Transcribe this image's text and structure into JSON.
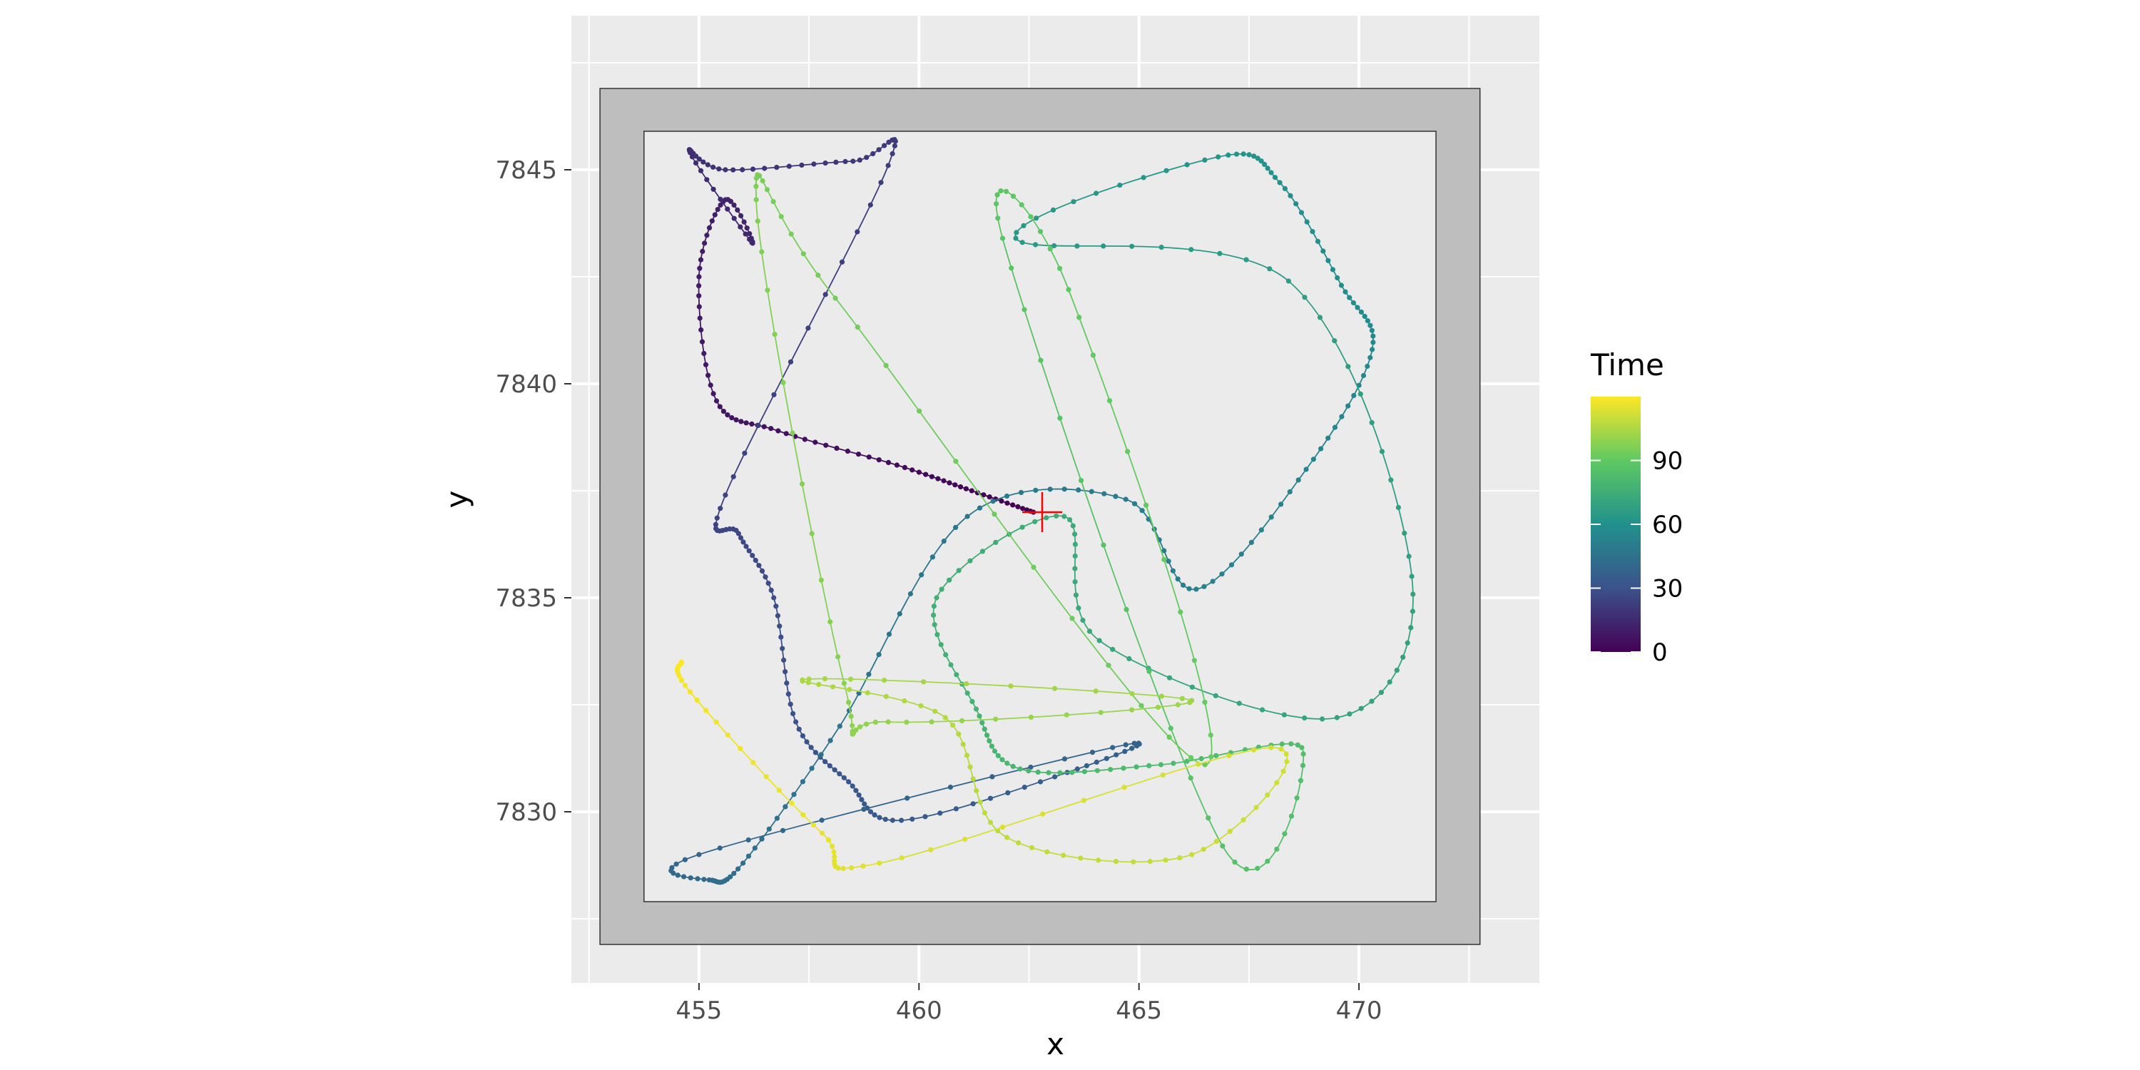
{
  "chart_data": {
    "type": "line",
    "title": "",
    "xlabel": "x",
    "ylabel": "y",
    "xlim": [
      452.1,
      474.1
    ],
    "ylim": [
      7826.0,
      7848.6
    ],
    "x_ticks": [
      455,
      460,
      465,
      470
    ],
    "y_ticks": [
      7830,
      7835,
      7840,
      7845
    ],
    "grid": true,
    "panel_background": "#ebebeb",
    "grid_color": "#ffffff",
    "outer_boundary": {
      "x": [
        452.75,
        472.75
      ],
      "y": [
        7826.9,
        7846.9
      ],
      "fill": "#bebebe"
    },
    "inner_boundary": {
      "x": [
        453.75,
        471.75
      ],
      "y": [
        7827.9,
        7845.9
      ],
      "fill": "#ebebeb"
    },
    "start_marker": {
      "x": 462.8,
      "y": 7837.0,
      "color": "#ff0000",
      "shape": "plus"
    },
    "legend": {
      "title": "Time",
      "placement": "right",
      "range": [
        0,
        120
      ],
      "ticks": [
        0,
        30,
        60,
        90
      ],
      "colormap": "viridis",
      "stops": [
        "#440154",
        "#3b528b",
        "#21918c",
        "#5ec962",
        "#fde725"
      ]
    },
    "track": {
      "time": [
        0,
        2,
        4,
        6,
        8,
        10,
        12,
        14,
        16,
        18,
        20,
        22,
        24,
        26,
        28,
        30,
        32,
        34,
        36,
        38,
        40,
        42,
        44,
        46,
        48,
        50,
        52,
        54,
        56,
        58,
        60,
        62,
        64,
        66,
        68,
        70,
        72,
        74,
        76,
        78,
        80,
        82,
        84,
        86,
        88,
        90,
        92,
        94,
        96,
        98,
        100,
        102,
        104,
        106,
        108,
        110,
        112,
        114,
        116,
        118,
        120
      ],
      "x": [
        462.6,
        461.2,
        459.5,
        456.8,
        455.4,
        455.0,
        455.6,
        456.2,
        454.8,
        455.6,
        458.5,
        459.3,
        455.6,
        455.9,
        456.7,
        457.2,
        458.4,
        459.6,
        463.6,
        464.4,
        455.0,
        455.3,
        456.0,
        458.2,
        461.1,
        464.7,
        466.3,
        468.8,
        470.3,
        469.6,
        468.2,
        466.8,
        462.2,
        468.4,
        471.2,
        469.5,
        464.1,
        463.3,
        460.4,
        461.3,
        462.3,
        465.5,
        468.7,
        466.9,
        461.9,
        463.4,
        466.5,
        458.1,
        456.3,
        458.3,
        459.3,
        466.2,
        457.5,
        460.6,
        462.0,
        466.2,
        468.0,
        459.1,
        457.8,
        454.8,
        454.6
      ],
      "y": [
        7837.0,
        7837.5,
        7838.1,
        7838.9,
        7839.6,
        7842.5,
        7844.3,
        7843.3,
        7845.4,
        7845.0,
        7845.2,
        7845.1,
        7837.4,
        7836.5,
        7835.0,
        7832.1,
        7830.7,
        7829.8,
        7831.0,
        7831.5,
        7829.0,
        7828.4,
        7828.8,
        7832.0,
        7836.9,
        7837.3,
        7835.2,
        7838.0,
        7840.8,
        7842.3,
        7844.7,
        7845.3,
        7843.4,
        7842.4,
        7835.5,
        7832.2,
        7834.0,
        7836.9,
        7835.0,
        7832.4,
        7831.0,
        7831.1,
        7831.5,
        7829.2,
        7843.4,
        7842.2,
        7831.1,
        7842.0,
        7844.3,
        7833.0,
        7832.1,
        7832.6,
        7833.1,
        7832.2,
        7829.4,
        7829.0,
        7831.5,
        7828.8,
        7829.5,
        7832.8,
        7833.5
      ]
    }
  }
}
